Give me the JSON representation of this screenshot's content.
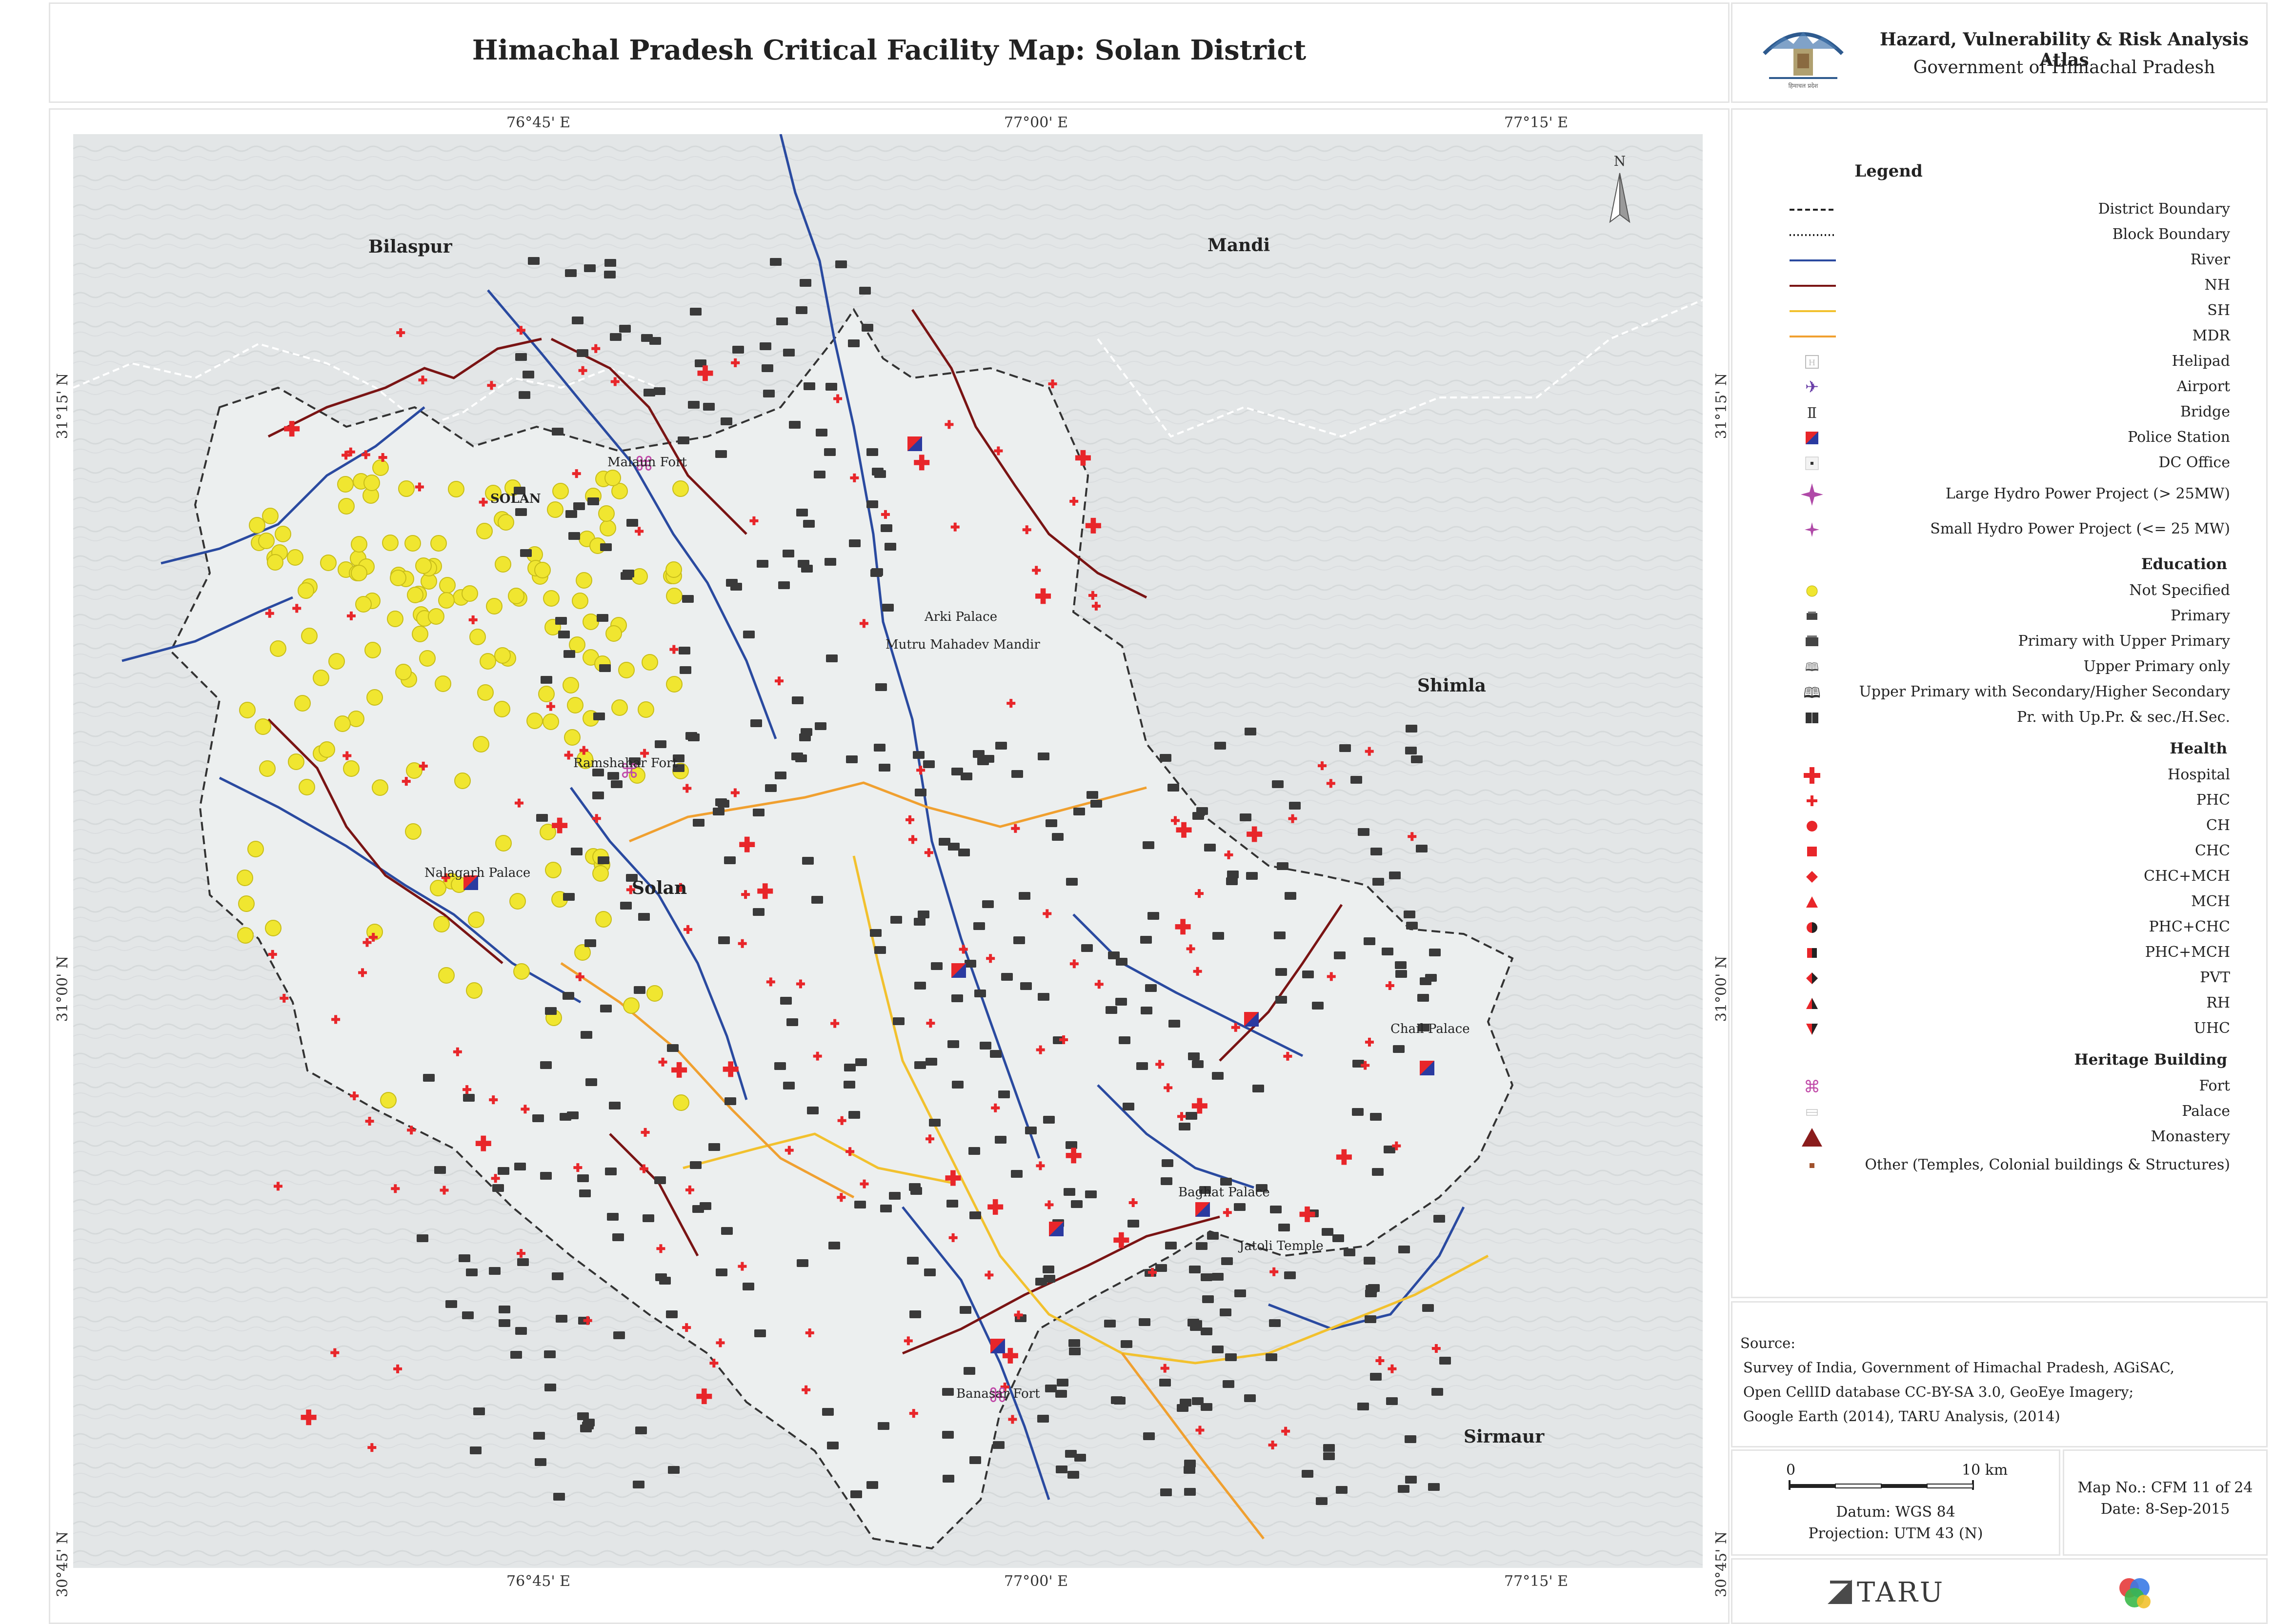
{
  "title": "Himachal Pradesh Critical Facility Map: Solan District",
  "atlas": {
    "title": "Hazard, Vulnerability & Risk Analysis Atlas",
    "subtitle": "Government of Himachal Pradesh"
  },
  "coordinates": {
    "top": [
      "76°45' E",
      "77°00' E",
      "77°15' E"
    ],
    "bottom": [
      "76°45' E",
      "77°00' E",
      "77°15' E"
    ],
    "left": [
      "31°15' N",
      "31°00' N",
      "30°45' N"
    ],
    "right": [
      "31°15' N",
      "31°00' N",
      "30°45' N"
    ]
  },
  "north_label": "N",
  "regions": [
    "Bilaspur",
    "Mandi",
    "Shimla",
    "Sirmaur",
    "Solan",
    "SOLAN"
  ],
  "places": [
    "Malaun Fort",
    "Arki Palace",
    "Mutru Mahadev Mandir",
    "Ramshahar Fort",
    "Nalagarh Palace",
    "Chail Palace",
    "Baghat Palace",
    "Jatoli Temple",
    "Banasar Fort"
  ],
  "legend": {
    "title": "Legend",
    "lines": [
      {
        "label": "District Boundary",
        "color": "#222222",
        "style": "dashed"
      },
      {
        "label": "Block Boundary",
        "color": "#222222",
        "style": "dotted"
      },
      {
        "label": "River",
        "color": "#2a4aa0",
        "style": "solid"
      },
      {
        "label": "NH",
        "color": "#7a1414",
        "style": "solid"
      },
      {
        "label": "SH",
        "color": "#f2c12e",
        "style": "solid"
      },
      {
        "label": "MDR",
        "color": "#f0a030",
        "style": "solid"
      }
    ],
    "infra": [
      "Helipad",
      "Airport",
      "Bridge",
      "Police Station",
      "DC Office",
      "Large Hydro Power Project (> 25MW)",
      "Small Hydro Power Project (<= 25 MW)"
    ],
    "education_title": "Education",
    "education": [
      "Not Specified",
      "Primary",
      "Primary with Upper Primary",
      "Upper Primary only",
      "Upper Primary with Secondary/Higher Secondary",
      "Pr. with Up.Pr. & sec./H.Sec."
    ],
    "health_title": "Health",
    "health": [
      "Hospital",
      "PHC",
      "CH",
      "CHC",
      "CHC+MCH",
      "MCH",
      "PHC+CHC",
      "PHC+MCH",
      "PVT",
      "RH",
      "UHC"
    ],
    "heritage_title": "Heritage Building",
    "heritage": [
      "Fort",
      "Palace",
      "Monastery",
      "Other (Temples, Colonial buildings & Structures)"
    ]
  },
  "source": {
    "label": "Source:",
    "lines": [
      "Survey of India, Government of Himachal Pradesh, AGiSAC,",
      "Open CellID database CC-BY-SA 3.0, GeoEye Imagery;",
      "Google Earth (2014), TARU Analysis, (2014)"
    ]
  },
  "scale": {
    "start": "0",
    "end": "10 km",
    "datum": "Datum: WGS 84",
    "projection": "Projection: UTM 43 (N)"
  },
  "map_info": {
    "number": "Map No.: CFM 11 of 24",
    "date": "Date: 8-Sep-2015"
  },
  "logo": "TARU",
  "colors": {
    "education_dot": "#f0e630",
    "health_red": "#e8262a",
    "heritage_pink": "#c04aa8",
    "river": "#2a4aa0",
    "nh": "#7a1414"
  }
}
